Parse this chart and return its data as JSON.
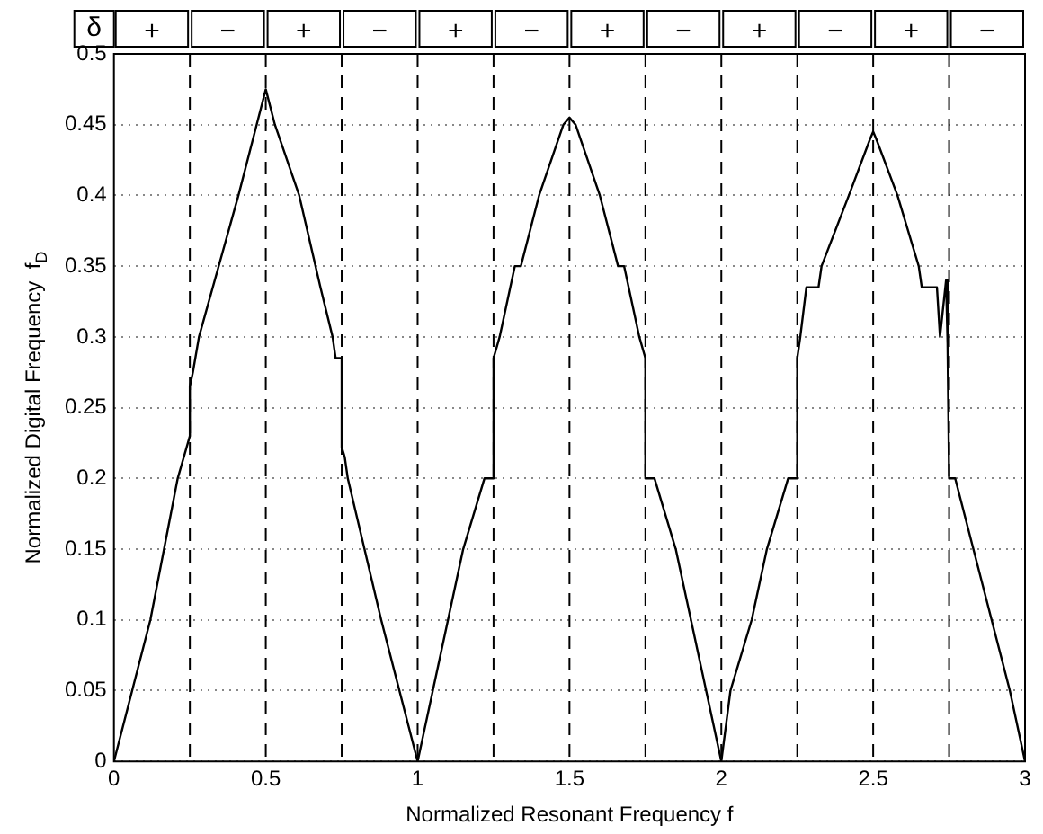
{
  "chart_data": {
    "type": "line",
    "xlabel": "Normalized Resonant Frequency f",
    "ylabel": "Normalized Digital Frequency  f$_{D}$",
    "x": [
      0,
      0.12,
      0.21,
      0.25,
      0.25,
      0.26,
      0.28,
      0.41,
      0.47,
      0.5,
      0.53,
      0.61,
      0.68,
      0.72,
      0.73,
      0.75,
      0.75,
      0.76,
      0.77,
      0.88,
      0.94,
      1,
      1.05,
      1.1,
      1.15,
      1.22,
      1.25,
      1.25,
      1.27,
      1.32,
      1.34,
      1.4,
      1.48,
      1.5,
      1.52,
      1.6,
      1.66,
      1.68,
      1.73,
      1.75,
      1.75,
      1.78,
      1.85,
      1.9,
      1.95,
      2,
      2.03,
      2.1,
      2.15,
      2.22,
      2.25,
      2.25,
      2.26,
      2.28,
      2.32,
      2.33,
      2.42,
      2.49,
      2.5,
      2.51,
      2.58,
      2.65,
      2.66,
      2.71,
      2.72,
      2.74,
      2.745,
      2.75,
      2.75,
      2.77,
      2.83,
      2.89,
      2.95,
      3
    ],
    "series": [
      {
        "color": "#000000",
        "values": [
          0,
          0.1,
          0.2,
          0.23,
          0.265,
          0.275,
          0.3,
          0.4,
          0.45,
          0.475,
          0.45,
          0.4,
          0.335,
          0.3,
          0.285,
          0.285,
          0.222,
          0.215,
          0.2,
          0.1,
          0.05,
          0,
          0.05,
          0.1,
          0.15,
          0.2,
          0.2,
          0.285,
          0.3,
          0.35,
          0.35,
          0.4,
          0.45,
          0.455,
          0.45,
          0.4,
          0.35,
          0.35,
          0.3,
          0.285,
          0.2,
          0.2,
          0.15,
          0.1,
          0.05,
          0,
          0.05,
          0.1,
          0.15,
          0.2,
          0.2,
          0.285,
          0.3,
          0.335,
          0.335,
          0.35,
          0.4,
          0.44,
          0.445,
          0.44,
          0.4,
          0.35,
          0.335,
          0.335,
          0.3,
          0.34,
          0.295,
          0.2,
          0.2,
          0.2,
          0.15,
          0.1,
          0.05,
          0
        ]
      }
    ],
    "xlim": [
      0,
      3
    ],
    "xticks": [
      0,
      0.5,
      1,
      1.5,
      2,
      2.5,
      3
    ],
    "ylim": [
      0,
      0.5
    ],
    "yticks": [
      0,
      0.05,
      0.1,
      0.15,
      0.2,
      0.25,
      0.3,
      0.35,
      0.4,
      0.45,
      0.5
    ],
    "grid": "y",
    "legend": false,
    "line_style": "solid",
    "ref_lines": [
      {
        "axis": "x",
        "value": 0.25,
        "line_style": "dashed"
      },
      {
        "axis": "x",
        "value": 0.5,
        "line_style": "dashed"
      },
      {
        "axis": "x",
        "value": 0.75,
        "line_style": "dashed"
      },
      {
        "axis": "x",
        "value": 1,
        "line_style": "dashed"
      },
      {
        "axis": "x",
        "value": 1.25,
        "line_style": "dashed"
      },
      {
        "axis": "x",
        "value": 1.5,
        "line_style": "dashed"
      },
      {
        "axis": "x",
        "value": 1.75,
        "line_style": "dashed"
      },
      {
        "axis": "x",
        "value": 2,
        "line_style": "dashed"
      },
      {
        "axis": "x",
        "value": 2.25,
        "line_style": "dashed"
      },
      {
        "axis": "x",
        "value": 2.5,
        "line_style": "dashed"
      },
      {
        "axis": "x",
        "value": 2.75,
        "line_style": "dashed"
      }
    ],
    "annotations": [
      "δ",
      "+",
      "−",
      "+",
      "−",
      "+",
      "−",
      "+",
      "−",
      "+",
      "−",
      "+",
      "−"
    ]
  }
}
